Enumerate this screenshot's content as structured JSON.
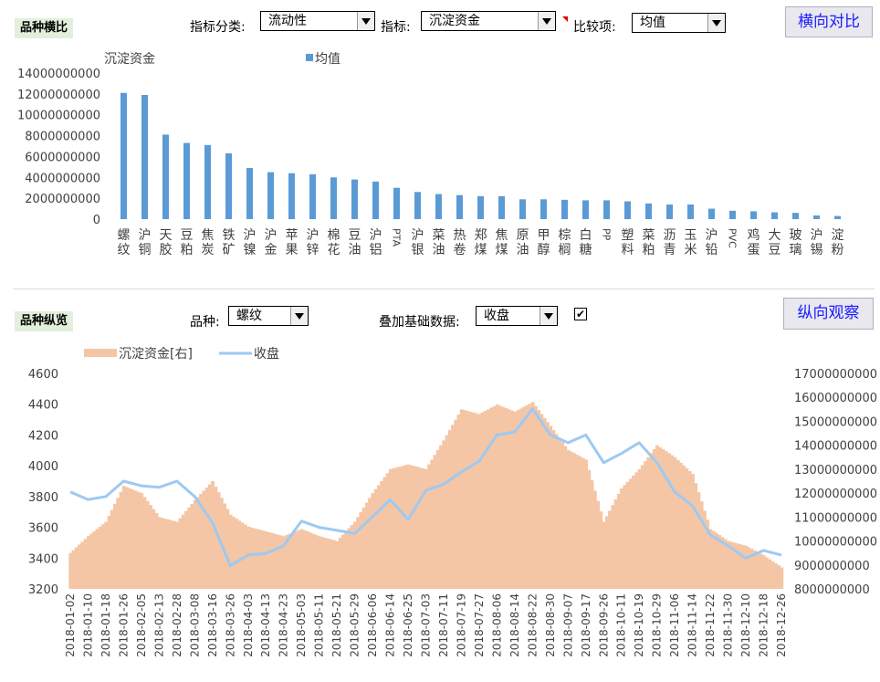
{
  "top_panel": {
    "section_label": "品种横比",
    "category_label": "指标分类:",
    "category_value": "流动性",
    "indicator_label": "指标:",
    "indicator_value": "沉淀资金",
    "compare_label": "比较项:",
    "compare_value": "均值",
    "button_label": "横向对比"
  },
  "bottom_panel": {
    "section_label": "品种纵览",
    "variety_label": "品种:",
    "variety_value": "螺纹",
    "overlay_label": "叠加基础数据:",
    "overlay_value": "收盘",
    "overlay_checked": "✔",
    "button_label": "纵向观察"
  },
  "chart_data": [
    {
      "type": "bar",
      "ylabel": "沉淀资金",
      "legend": "均值",
      "legend_position": "top",
      "color": "#5b9bd5",
      "ylim": [
        0,
        14000000000
      ],
      "yticks": [
        "0",
        "2000000000",
        "4000000000",
        "6000000000",
        "8000000000",
        "10000000000",
        "12000000000",
        "14000000000"
      ],
      "categories": [
        "螺纹",
        "沪铜",
        "天胶",
        "豆粕",
        "焦炭",
        "铁矿",
        "沪镍",
        "沪金",
        "苹果",
        "沪锌",
        "棉花",
        "豆油",
        "沪铝",
        "PTA",
        "沪银",
        "菜油",
        "热卷",
        "郑煤",
        "焦煤",
        "原油",
        "甲醇",
        "棕榈",
        "白糖",
        "PP",
        "塑料",
        "菜粕",
        "沥青",
        "玉米",
        "沪铅",
        "PVC",
        "鸡蛋",
        "大豆",
        "玻璃",
        "沪锡",
        "淀粉"
      ],
      "values": [
        12100000000,
        11900000000,
        8100000000,
        7300000000,
        7100000000,
        6300000000,
        4900000000,
        4500000000,
        4400000000,
        4300000000,
        4000000000,
        3800000000,
        3600000000,
        3000000000,
        2600000000,
        2400000000,
        2300000000,
        2200000000,
        2200000000,
        1900000000,
        1900000000,
        1850000000,
        1800000000,
        1800000000,
        1700000000,
        1500000000,
        1400000000,
        1400000000,
        1000000000,
        800000000,
        750000000,
        650000000,
        600000000,
        350000000,
        300000000
      ]
    },
    {
      "type": "area+line",
      "legend_position": "top",
      "series": [
        {
          "name": "沉淀资金[右]",
          "axis": "right",
          "kind": "area",
          "color": "#f4c6a5"
        },
        {
          "name": "收盘",
          "axis": "left",
          "kind": "line",
          "color": "#9ec9f2"
        }
      ],
      "ylim_left": [
        3200,
        4600
      ],
      "yticks_left": [
        "3200",
        "3400",
        "3600",
        "3800",
        "4000",
        "4200",
        "4400",
        "4600"
      ],
      "ylim_right": [
        8000000000,
        17000000000
      ],
      "yticks_right": [
        "8000000000",
        "9000000000",
        "10000000000",
        "11000000000",
        "12000000000",
        "13000000000",
        "14000000000",
        "15000000000",
        "16000000000",
        "17000000000"
      ],
      "xtick_labels": [
        "2018-01-02",
        "2018-01-10",
        "2018-01-18",
        "2018-01-26",
        "2018-02-05",
        "2018-02-13",
        "2018-02-28",
        "2018-03-08",
        "2018-03-16",
        "2018-03-26",
        "2018-04-03",
        "2018-04-13",
        "2018-04-23",
        "2018-05-03",
        "2018-05-11",
        "2018-05-21",
        "2018-05-29",
        "2018-06-06",
        "2018-06-14",
        "2018-06-25",
        "2018-07-03",
        "2018-07-11",
        "2018-07-19",
        "2018-07-27",
        "2018-08-06",
        "2018-08-14",
        "2018-08-22",
        "2018-08-30",
        "2018-09-07",
        "2018-09-17",
        "2018-09-26",
        "2018-10-11",
        "2018-10-19",
        "2018-10-29",
        "2018-11-06",
        "2018-11-14",
        "2018-11-22",
        "2018-11-30",
        "2018-12-10",
        "2018-12-18",
        "2018-12-26"
      ],
      "close_at_ticks": [
        3830,
        3780,
        3800,
        3900,
        3870,
        3860,
        3900,
        3800,
        3630,
        3350,
        3420,
        3430,
        3480,
        3640,
        3600,
        3580,
        3560,
        3670,
        3780,
        3650,
        3840,
        3880,
        3960,
        4030,
        4200,
        4220,
        4370,
        4200,
        4150,
        4200,
        4020,
        4080,
        4150,
        4020,
        3830,
        3740,
        3550,
        3480,
        3400,
        3450,
        3420
      ],
      "capital_at_ticks": [
        9500000000,
        10200000000,
        10800000000,
        12300000000,
        12000000000,
        11000000000,
        10800000000,
        11700000000,
        12500000000,
        11100000000,
        10600000000,
        10400000000,
        10200000000,
        10500000000,
        10200000000,
        10000000000,
        10800000000,
        12000000000,
        13000000000,
        13200000000,
        13000000000,
        14200000000,
        15500000000,
        15300000000,
        15700000000,
        15400000000,
        15800000000,
        14800000000,
        13800000000,
        13400000000,
        10800000000,
        12200000000,
        13000000000,
        14000000000,
        13500000000,
        12800000000,
        10500000000,
        10000000000,
        9800000000,
        9400000000,
        8900000000
      ]
    }
  ]
}
